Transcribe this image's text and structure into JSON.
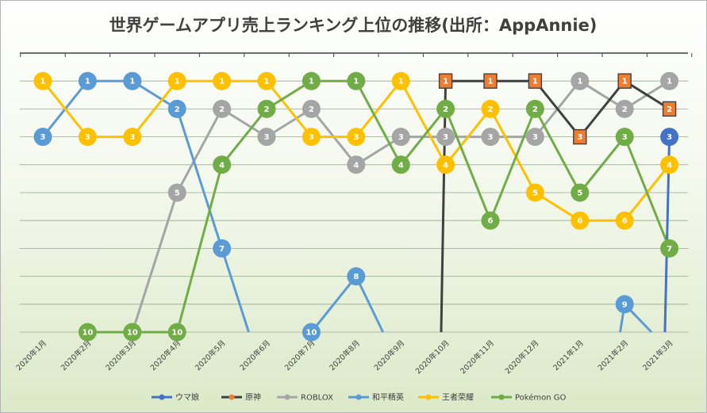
{
  "chart_data": {
    "type": "line",
    "title": "世界ゲームアプリ売上ランキング上位の推移(出所：AppAnnie)",
    "categories": [
      "2020年1月",
      "2020年2月",
      "2020年3月",
      "2020年4月",
      "2020年5月",
      "2020年6月",
      "2020年7月",
      "2020年8月",
      "2020年9月",
      "2020年10月",
      "2020年11月",
      "2020年12月",
      "2021年1月",
      "2021年2月",
      "2021年3月"
    ],
    "ylim": [
      0,
      10
    ],
    "y_reversed": true,
    "grid": true,
    "legend_position": "bottom",
    "series": [
      {
        "name": "ウマ娘",
        "color": "#4472C4",
        "values": [
          null,
          null,
          null,
          null,
          null,
          null,
          null,
          null,
          null,
          null,
          null,
          null,
          null,
          null,
          3
        ]
      },
      {
        "name": "原神",
        "color": "#ED7D31",
        "line_color": "#404040",
        "marker_shape": "square",
        "values": [
          null,
          null,
          null,
          null,
          null,
          null,
          null,
          null,
          null,
          1,
          1,
          1,
          3,
          1,
          2
        ]
      },
      {
        "name": "ROBLOX",
        "color": "#A5A5A5",
        "values": [
          null,
          null,
          10,
          5,
          2,
          3,
          2,
          4,
          3,
          3,
          3,
          3,
          1,
          2,
          1
        ]
      },
      {
        "name": "和平精英",
        "color": "#5B9BD5",
        "values": [
          3,
          1,
          1,
          2,
          7,
          null,
          10,
          8,
          null,
          null,
          null,
          null,
          null,
          9,
          null
        ]
      },
      {
        "name": "王者荣耀",
        "color": "#FFC000",
        "values": [
          1,
          3,
          3,
          1,
          1,
          1,
          3,
          3,
          1,
          4,
          2,
          5,
          6,
          6,
          4
        ]
      },
      {
        "name": "Pokémon GO",
        "color": "#70AD47",
        "values": [
          null,
          10,
          10,
          10,
          4,
          2,
          1,
          1,
          4,
          2,
          6,
          2,
          5,
          3,
          7
        ]
      }
    ]
  }
}
